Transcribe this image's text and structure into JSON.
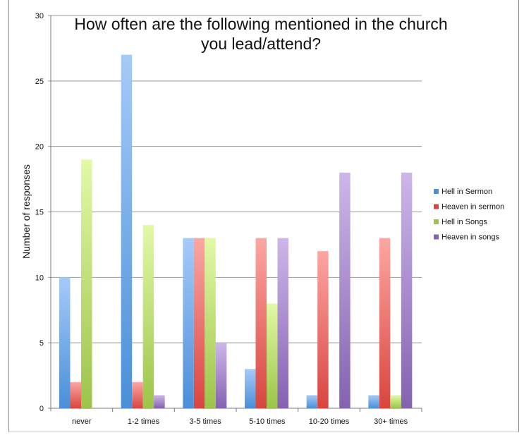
{
  "chart_data": {
    "type": "bar",
    "title": "How often are the following mentioned in the church you lead/attend?",
    "title_lines": [
      "How often are the following mentioned in the church",
      "you lead/attend?"
    ],
    "xlabel": "",
    "ylabel": "Number of responses",
    "ylim": [
      0,
      30
    ],
    "yticks": [
      0,
      5,
      10,
      15,
      20,
      25,
      30
    ],
    "grid": true,
    "legend_position": "right",
    "categories": [
      "never",
      "1-2 times",
      "3-5 times",
      "5-10 times",
      "10-20 times",
      "30+ times"
    ],
    "series": [
      {
        "name": "Hell in Sermon",
        "values": [
          10,
          27,
          13,
          3,
          1,
          1
        ],
        "color": "#4a8fd8",
        "light": "#a6caf8"
      },
      {
        "name": "Heaven in sermon",
        "values": [
          2,
          2,
          13,
          13,
          12,
          13
        ],
        "color": "#d9453f",
        "light": "#fca6a2"
      },
      {
        "name": "Hell in Songs",
        "values": [
          19,
          14,
          13,
          8,
          0,
          1
        ],
        "color": "#9cc44a",
        "light": "#e2f9a6"
      },
      {
        "name": "Heaven in songs",
        "values": [
          0,
          1,
          5,
          13,
          18,
          18
        ],
        "color": "#8462b0",
        "light": "#cdb6ea"
      }
    ]
  }
}
